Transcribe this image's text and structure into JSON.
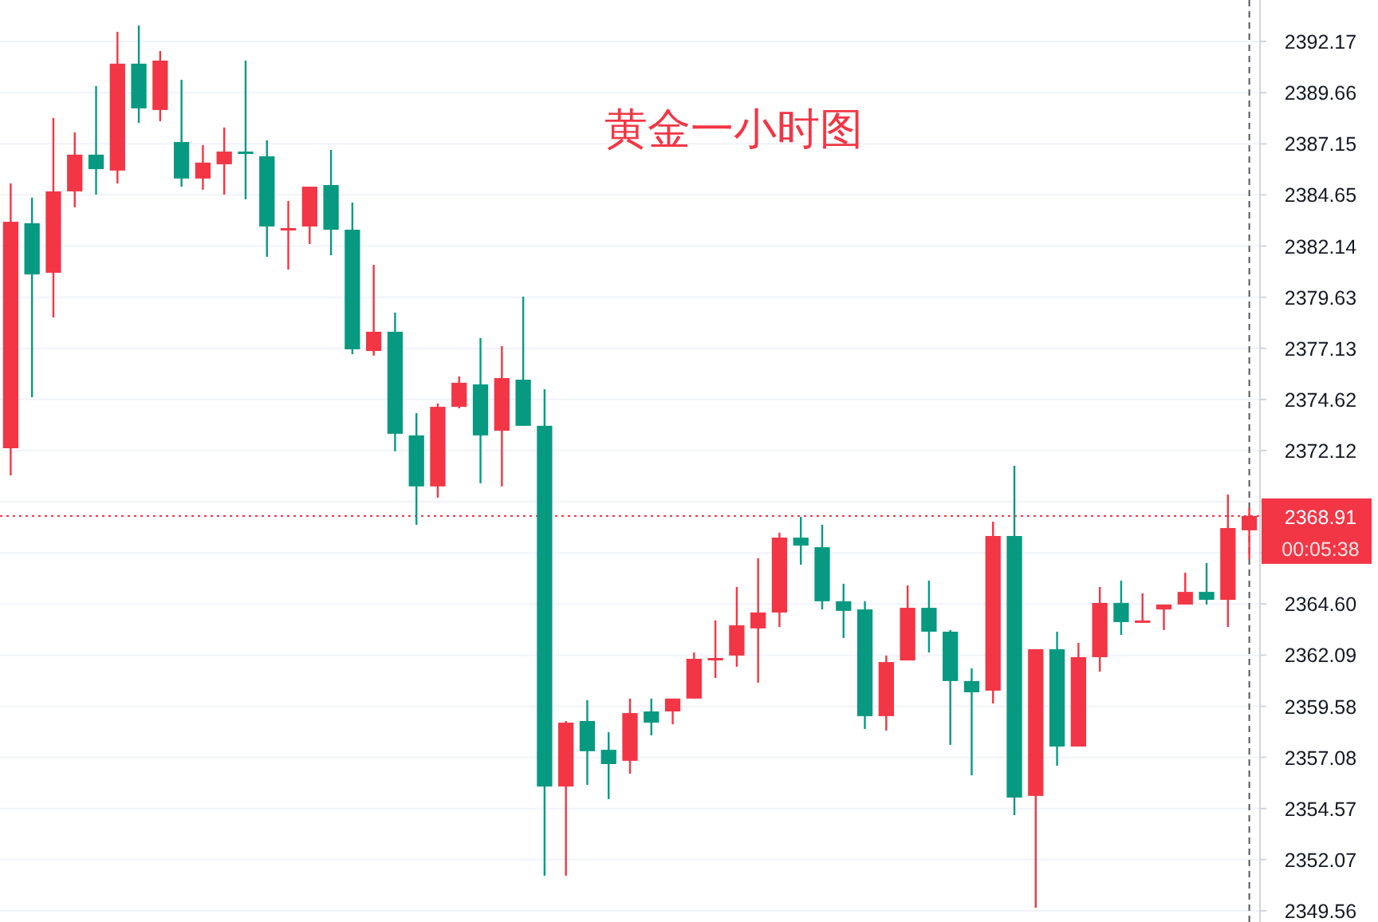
{
  "chart_data": {
    "type": "candlestick",
    "title": "黄金一小时图",
    "categories": [
      null,
      null,
      null,
      null,
      null,
      null,
      null,
      null,
      null,
      null,
      null,
      null,
      null,
      null,
      null,
      null,
      null,
      null,
      null,
      null,
      null,
      null,
      null,
      null,
      null,
      null,
      null,
      null,
      null,
      null,
      null,
      null,
      null,
      null,
      null,
      null,
      null,
      null,
      null,
      null,
      null,
      null,
      null,
      null,
      null,
      null,
      null,
      null,
      null,
      null,
      null,
      null,
      null,
      null,
      null,
      null,
      null,
      null,
      null
    ],
    "ohlc": [
      [
        2372.23,
        2385.21,
        2370.9,
        2383.33
      ],
      [
        2383.26,
        2384.51,
        2374.73,
        2380.75
      ],
      [
        2380.83,
        2388.42,
        2378.64,
        2384.82
      ],
      [
        2384.82,
        2387.71,
        2384.04,
        2386.62
      ],
      [
        2386.62,
        2389.98,
        2384.66,
        2385.91
      ],
      [
        2385.84,
        2392.64,
        2385.21,
        2391.08
      ],
      [
        2391.08,
        2392.95,
        2388.18,
        2388.89
      ],
      [
        2388.81,
        2391.7,
        2388.26,
        2391.23
      ],
      [
        2387.24,
        2390.29,
        2385.05,
        2385.45
      ],
      [
        2385.45,
        2387.09,
        2384.9,
        2386.23
      ],
      [
        2386.15,
        2387.95,
        2384.66,
        2386.77
      ],
      [
        2386.77,
        2391.23,
        2384.43,
        2386.7
      ],
      [
        2386.54,
        2387.32,
        2381.61,
        2383.1
      ],
      [
        2382.98,
        2384.35,
        2380.99,
        2383.02
      ],
      [
        2383.1,
        2385.05,
        2382.24,
        2385.05
      ],
      [
        2385.13,
        2386.85,
        2381.69,
        2382.94
      ],
      [
        2382.94,
        2384.27,
        2376.84,
        2377.08
      ],
      [
        2377.0,
        2381.22,
        2376.77,
        2377.94
      ],
      [
        2377.94,
        2378.88,
        2372.08,
        2372.94
      ],
      [
        2372.86,
        2373.95,
        2368.48,
        2370.36
      ],
      [
        2370.36,
        2374.42,
        2369.81,
        2374.26
      ],
      [
        2374.26,
        2375.75,
        2374.19,
        2375.44
      ],
      [
        2375.36,
        2377.63,
        2370.51,
        2372.86
      ],
      [
        2373.09,
        2377.24,
        2370.36,
        2375.67
      ],
      [
        2375.59,
        2379.66,
        2373.33,
        2373.33
      ],
      [
        2373.33,
        2375.12,
        2351.28,
        2355.65
      ],
      [
        2355.65,
        2358.86,
        2351.28,
        2358.78
      ],
      [
        2358.86,
        2359.88,
        2355.73,
        2357.38
      ],
      [
        2357.45,
        2358.31,
        2355.03,
        2356.75
      ],
      [
        2356.91,
        2359.96,
        2356.28,
        2359.25
      ],
      [
        2359.33,
        2359.96,
        2358.16,
        2358.78
      ],
      [
        2359.33,
        2359.96,
        2358.7,
        2359.96
      ],
      [
        2359.96,
        2362.22,
        2359.96,
        2361.91
      ],
      [
        2361.91,
        2363.79,
        2360.97,
        2361.95
      ],
      [
        2362.07,
        2365.43,
        2361.52,
        2363.55
      ],
      [
        2363.4,
        2366.84,
        2360.74,
        2364.18
      ],
      [
        2364.18,
        2368.09,
        2363.47,
        2367.85
      ],
      [
        2367.85,
        2368.87,
        2366.52,
        2367.46
      ],
      [
        2367.38,
        2368.48,
        2364.33,
        2364.73
      ],
      [
        2364.73,
        2365.59,
        2362.93,
        2364.26
      ],
      [
        2364.33,
        2364.73,
        2358.47,
        2359.1
      ],
      [
        2359.1,
        2362.07,
        2358.39,
        2361.75
      ],
      [
        2361.83,
        2365.51,
        2361.83,
        2364.41
      ],
      [
        2364.41,
        2365.74,
        2362.22,
        2363.24
      ],
      [
        2363.24,
        2363.32,
        2357.69,
        2360.82
      ],
      [
        2360.82,
        2361.44,
        2356.2,
        2360.27
      ],
      [
        2360.35,
        2368.63,
        2359.72,
        2367.93
      ],
      [
        2367.93,
        2371.37,
        2354.25,
        2355.11
      ],
      [
        2355.19,
        2362.38,
        2349.71,
        2362.38
      ],
      [
        2362.38,
        2363.24,
        2356.67,
        2357.61
      ],
      [
        2357.61,
        2362.69,
        2357.61,
        2361.99
      ],
      [
        2361.99,
        2365.43,
        2361.28,
        2364.65
      ],
      [
        2364.65,
        2365.74,
        2363.08,
        2363.71
      ],
      [
        2363.75,
        2365.12,
        2363.75,
        2363.79
      ],
      [
        2364.33,
        2364.57,
        2363.32,
        2364.57
      ],
      [
        2364.57,
        2366.13,
        2364.57,
        2365.19
      ],
      [
        2365.19,
        2366.6,
        2364.57,
        2364.8
      ],
      [
        2364.8,
        2369.96,
        2363.47,
        2368.32
      ],
      [
        2368.21,
        2369.3,
        2366.8,
        2368.91
      ]
    ],
    "colors": [
      "#f23645",
      "#089981",
      "#f23645",
      "#f23645",
      "#089981",
      "#f23645",
      "#089981",
      "#f23645",
      "#089981",
      "#f23645",
      "#f23645",
      "#089981",
      "#089981",
      "#f23645",
      "#f23645",
      "#089981",
      "#089981",
      "#f23645",
      "#089981",
      "#089981",
      "#f23645",
      "#f23645",
      "#089981",
      "#f23645",
      "#089981",
      "#089981",
      "#f23645",
      "#089981",
      "#089981",
      "#f23645",
      "#089981",
      "#f23645",
      "#f23645",
      "#f23645",
      "#f23645",
      "#f23645",
      "#f23645",
      "#089981",
      "#089981",
      "#089981",
      "#089981",
      "#f23645",
      "#f23645",
      "#089981",
      "#089981",
      "#089981",
      "#f23645",
      "#089981",
      "#f23645",
      "#089981",
      "#f23645",
      "#f23645",
      "#089981",
      "#f23645",
      "#f23645",
      "#f23645",
      "#089981",
      "#f23645",
      "#f23645"
    ],
    "ylim": [
      2349.01,
      2394.2
    ],
    "yticks": [
      2349.56,
      2352.07,
      2354.57,
      {
        "value": 2357.08,
        "label": "2357.08"
      },
      2359.58,
      2362.09,
      {
        "value": 2364.6,
        "label": "2364.60"
      },
      {
        "value": 2367.1,
        "label": null
      },
      {
        "value": 2369.61,
        "label": null
      },
      2372.12,
      2374.62,
      2377.13,
      2379.63,
      2382.14,
      2384.65,
      2387.15,
      2389.66,
      2392.17
    ],
    "grid": "y",
    "ref_lines": [
      {
        "axis": "y",
        "value": 2368.91,
        "label": "2368.91",
        "color": "#f23645",
        "line_style": "dotted"
      }
    ],
    "annotations": [
      "00:05:38"
    ]
  }
}
